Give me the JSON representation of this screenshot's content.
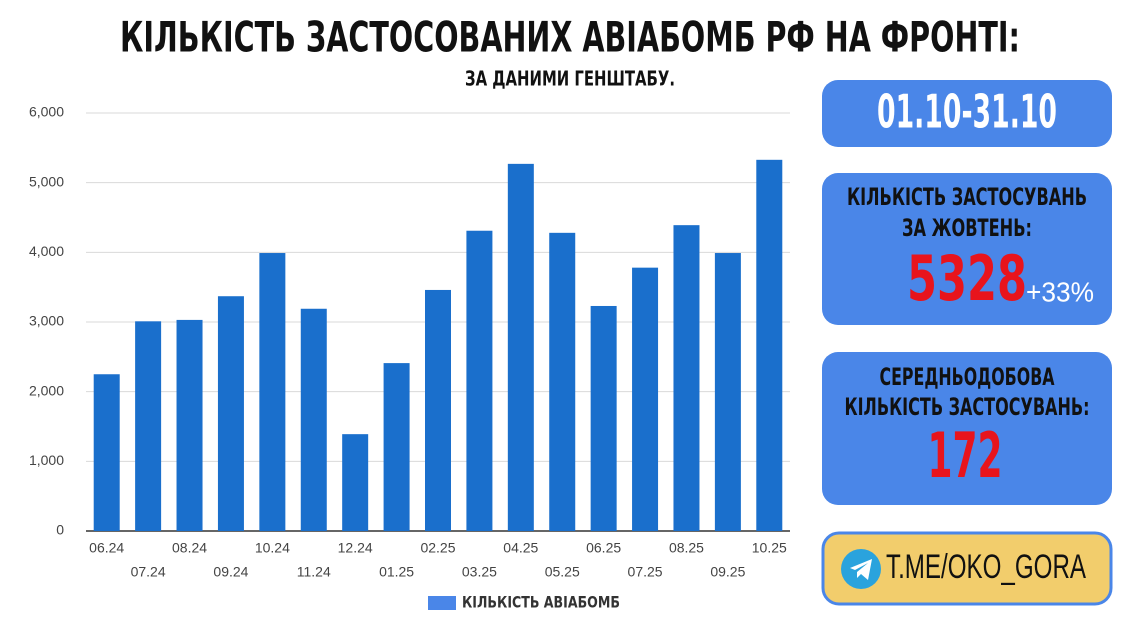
{
  "chart_data": {
    "type": "bar",
    "title": "КІЛЬКІСТЬ ЗАСТОСОВАНИХ АВІАБОМБ РФ НА ФРОНТІ:",
    "subtitle": "ЗА ДАНИМИ ГЕНШТАБУ.",
    "categories": [
      "06.24",
      "07.24",
      "08.24",
      "09.24",
      "10.24",
      "11.24",
      "12.24",
      "01.25",
      "02.25",
      "03.25",
      "04.25",
      "05.25",
      "06.25",
      "07.25",
      "08.25",
      "09.25",
      "10.25"
    ],
    "series": [
      {
        "name": "КІЛЬКІСТЬ АВІАБОМБ",
        "color": "#1a6fcc",
        "values": [
          2250,
          3010,
          3030,
          3370,
          3990,
          3190,
          1390,
          2410,
          3460,
          4310,
          5270,
          4280,
          3230,
          3780,
          4390,
          3990,
          5328
        ]
      }
    ],
    "ylim": [
      0,
      6000
    ],
    "yticks": [
      0,
      {
        "value": 1000,
        "label": "1,000"
      },
      {
        "value": 2000,
        "label": "2,000"
      },
      {
        "value": 3000,
        "label": "3,000"
      },
      {
        "value": 4000,
        "label": "4,000"
      },
      {
        "value": 5000,
        "label": "5,000"
      },
      {
        "value": 6000,
        "label": "6,000"
      }
    ],
    "grid": true,
    "legend": "bottom"
  },
  "panels": {
    "period": "01.10-31.10",
    "monthly": {
      "label": [
        "КІЛЬКІСТЬ ЗАСТОСУВАНЬ",
        "ЗА ЖОВТЕНЬ:"
      ],
      "value": "5328",
      "change": "+33%"
    },
    "daily": {
      "label": [
        "СЕРЕДНЬОДОБОВА",
        "КІЛЬКІСТЬ ЗАСТОСУВАНЬ:"
      ],
      "value": "172"
    },
    "channel": "T.ME/OKO_GORA"
  }
}
